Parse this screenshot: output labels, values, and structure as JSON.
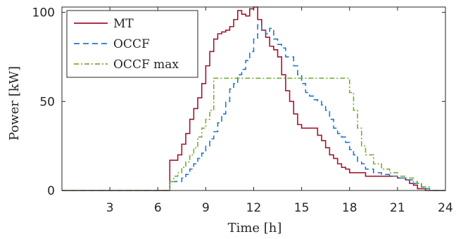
{
  "chart_data": {
    "type": "line",
    "xlabel": "Time [h]",
    "ylabel": "Power [kW]",
    "xlim": [
      0,
      24
    ],
    "ylim": [
      0,
      103
    ],
    "xticks": [
      3,
      6,
      9,
      12,
      15,
      18,
      21,
      24
    ],
    "yticks": [
      0,
      50,
      100
    ],
    "grid": false,
    "legend_position": "top-left",
    "series": [
      {
        "name": "MT",
        "color": "#a2142f",
        "dash": "solid",
        "x": [
          0,
          6.75,
          6.75,
          7.0,
          7.25,
          7.5,
          7.75,
          8.0,
          8.25,
          8.5,
          8.75,
          9.0,
          9.25,
          9.5,
          9.75,
          10.0,
          10.25,
          10.5,
          10.75,
          11.0,
          11.25,
          11.5,
          11.75,
          12.0,
          12.25,
          12.5,
          12.75,
          13.0,
          13.25,
          13.5,
          13.75,
          14.0,
          14.25,
          14.5,
          14.75,
          15.0,
          15.25,
          15.5,
          15.75,
          16.0,
          16.25,
          16.5,
          16.75,
          17.0,
          17.25,
          17.5,
          17.75,
          18.0,
          18.25,
          18.5,
          19.0,
          19.5,
          20.0,
          20.5,
          21.0,
          21.5,
          21.75,
          22.0,
          22.25,
          22.5,
          22.75,
          23.0
        ],
        "y": [
          0,
          0,
          17,
          17,
          20,
          26,
          32,
          40,
          46,
          52,
          60,
          70,
          78,
          85,
          88,
          89,
          90,
          92,
          96,
          101,
          99,
          98,
          102,
          103,
          96,
          90,
          86,
          81,
          79,
          75,
          65,
          56,
          50,
          43,
          37,
          35,
          35,
          35,
          35,
          31,
          28,
          24,
          20,
          18,
          15,
          13,
          12,
          10,
          10,
          10,
          8,
          8,
          8,
          8,
          7,
          6,
          4,
          3,
          1,
          1,
          0,
          0
        ]
      },
      {
        "name": "OCCF",
        "color": "#1f77c9",
        "dash": "8,5",
        "x": [
          0,
          6.75,
          6.75,
          7.25,
          7.5,
          7.75,
          8.0,
          8.25,
          8.5,
          8.75,
          9.0,
          9.25,
          9.5,
          9.75,
          10.0,
          10.25,
          10.5,
          10.75,
          11.0,
          11.25,
          11.5,
          11.75,
          12.0,
          12.25,
          12.5,
          12.75,
          13.0,
          13.25,
          13.5,
          13.75,
          14.0,
          14.5,
          14.75,
          15.0,
          15.25,
          15.5,
          15.75,
          16.0,
          16.25,
          16.5,
          16.75,
          17.0,
          17.25,
          17.5,
          17.75,
          18.0,
          18.25,
          18.5,
          18.75,
          19.0,
          19.5,
          20.0,
          20.5,
          21.0,
          21.5,
          22.0,
          22.5,
          22.75,
          23.0
        ],
        "y": [
          0,
          0,
          5,
          5,
          7,
          9,
          12,
          15,
          18,
          21,
          25,
          29,
          33,
          38,
          43,
          50,
          57,
          60,
          65,
          68,
          73,
          78,
          85,
          93,
          90,
          88,
          91,
          85,
          82,
          80,
          75,
          70,
          65,
          60,
          55,
          53,
          51,
          50,
          48,
          45,
          40,
          35,
          32,
          30,
          27,
          23,
          20,
          16,
          15,
          12,
          10,
          9,
          8,
          7,
          6,
          4,
          2,
          1,
          0
        ]
      },
      {
        "name": "OCCF max",
        "color": "#77ac30",
        "dash": "7,3,2,3",
        "x": [
          0,
          6.75,
          6.75,
          7.0,
          7.25,
          7.5,
          7.75,
          8.0,
          8.25,
          8.5,
          8.75,
          9.0,
          9.25,
          9.5,
          17.75,
          18.0,
          18.25,
          18.5,
          18.75,
          19.0,
          19.5,
          20.0,
          20.5,
          21.0,
          21.5,
          22.0,
          22.25,
          22.5,
          23.0
        ],
        "y": [
          0,
          0,
          5,
          8,
          10,
          13,
          16,
          20,
          24,
          30,
          35,
          40,
          45,
          63,
          63,
          55,
          45,
          35,
          25,
          20,
          15,
          12,
          10,
          8,
          7,
          5,
          4,
          2,
          0
        ]
      }
    ]
  }
}
